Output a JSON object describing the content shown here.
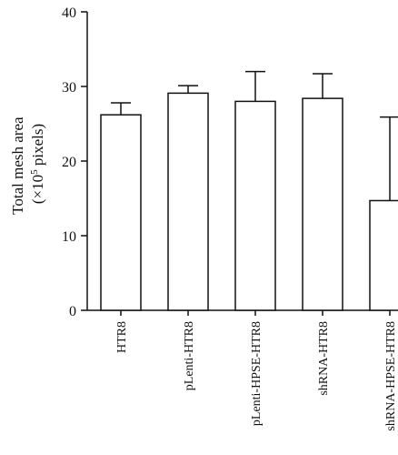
{
  "chart_data": {
    "type": "bar",
    "ylabel_line1": "Total mesh area",
    "ylabel_line2_prefix": "(×10",
    "ylabel_line2_sup": "5",
    "ylabel_line2_suffix": " pixels)",
    "xlabel": "",
    "ylim": [
      0,
      40
    ],
    "yticks": [
      0,
      10,
      20,
      30,
      40
    ],
    "categories": [
      "HTR8",
      "pLenti-HTR8",
      "pLenti-HPSE-HTR8",
      "shRNA-HTR8",
      "shRNA-HPSE-HTR8"
    ],
    "values": [
      26.2,
      29.1,
      28.0,
      28.4,
      14.7
    ],
    "error_upper": [
      1.6,
      1.0,
      4.0,
      3.3,
      11.2
    ],
    "grid": false,
    "legend": "none",
    "colors": {
      "bar_fill": "#ffffff",
      "bar_stroke": "#111111",
      "axis": "#111111"
    }
  }
}
